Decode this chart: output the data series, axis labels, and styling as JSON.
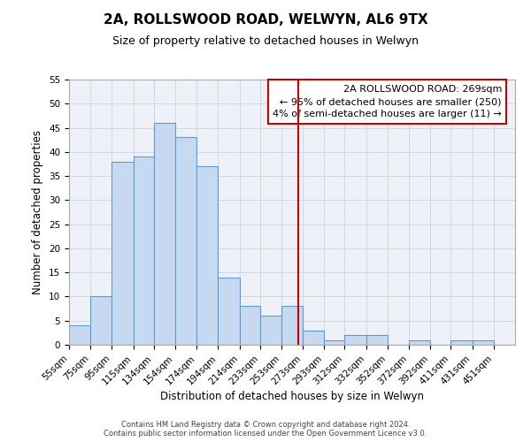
{
  "title": "2A, ROLLSWOOD ROAD, WELWYN, AL6 9TX",
  "subtitle": "Size of property relative to detached houses in Welwyn",
  "xlabel": "Distribution of detached houses by size in Welwyn",
  "ylabel": "Number of detached properties",
  "bar_labels": [
    "55sqm",
    "75sqm",
    "95sqm",
    "115sqm",
    "134sqm",
    "154sqm",
    "174sqm",
    "194sqm",
    "214sqm",
    "233sqm",
    "253sqm",
    "273sqm",
    "293sqm",
    "312sqm",
    "332sqm",
    "352sqm",
    "372sqm",
    "392sqm",
    "411sqm",
    "431sqm",
    "451sqm"
  ],
  "bar_heights": [
    4,
    10,
    38,
    39,
    46,
    43,
    37,
    14,
    8,
    6,
    8,
    3,
    1,
    2,
    2,
    0,
    1,
    0,
    1,
    1,
    0
  ],
  "bin_edges": [
    55,
    75,
    95,
    115,
    134,
    154,
    174,
    194,
    214,
    233,
    253,
    273,
    293,
    312,
    332,
    352,
    372,
    392,
    411,
    431,
    451,
    471
  ],
  "bar_color": "#c7d9f0",
  "bar_edgecolor": "#5b9bd5",
  "vline_x": 269,
  "vline_color": "#cc0000",
  "ylim": [
    0,
    55
  ],
  "yticks": [
    0,
    5,
    10,
    15,
    20,
    25,
    30,
    35,
    40,
    45,
    50,
    55
  ],
  "grid_color": "#c8d4e8",
  "background_color": "#eef2f8",
  "annotation_title": "2A ROLLSWOOD ROAD: 269sqm",
  "annotation_line1": "← 95% of detached houses are smaller (250)",
  "annotation_line2": "4% of semi-detached houses are larger (11) →",
  "annotation_box_edgecolor": "#cc0000",
  "footer_line1": "Contains HM Land Registry data © Crown copyright and database right 2024.",
  "footer_line2": "Contains public sector information licensed under the Open Government Licence v3.0.",
  "title_fontsize": 11,
  "subtitle_fontsize": 9,
  "axis_label_fontsize": 8.5,
  "tick_fontsize": 7.5,
  "annotation_fontsize": 8,
  "footer_fontsize": 6
}
